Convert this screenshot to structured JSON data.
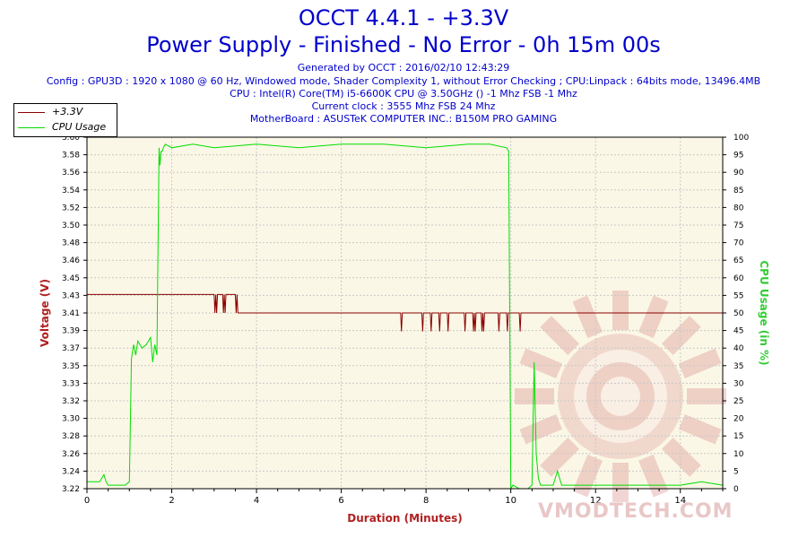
{
  "header": {
    "title": "OCCT 4.4.1 - +3.3V",
    "subtitle": "Power Supply - Finished - No Error - 0h 15m 00s",
    "info_lines": [
      "Generated by OCCT : 2016/02/10 12:43:29",
      "Config : GPU3D : 1920 x 1080 @ 60 Hz, Windowed mode, Shader Complexity 1, without Error Checking ; CPU:Linpack : 64bits mode, 13496.4MB",
      "CPU : Intel(R) Core(TM) i5-6600K CPU @ 3.50GHz () -1 Mhz FSB -1 Mhz",
      "Current clock : 3555 Mhz FSB 24 Mhz",
      "MotherBoard : ASUSTeK COMPUTER INC.: B150M PRO GAMING"
    ]
  },
  "watermark": "VMODTECH.COM",
  "colors": {
    "voltage": "#8b0000",
    "cpu": "#00dd00",
    "plot_bg": "#fbf7e6",
    "grid": "#c8c8c8",
    "axis_title_x": "#b02020",
    "axis_title_left": "#b02020",
    "axis_title_right": "#33cc33"
  },
  "chart_data": {
    "type": "line",
    "xlabel": "Duration (Minutes)",
    "ylabel_left": "Voltage (V)",
    "ylabel_right": "CPU Usage (in %)",
    "xlim": [
      0,
      15
    ],
    "ylim_left": [
      3.22,
      3.6
    ],
    "ylim_right": [
      0,
      100
    ],
    "x_ticks": [
      0,
      2,
      4,
      6,
      8,
      10,
      12,
      14
    ],
    "y_left_ticks": [
      "3.22",
      "3.24",
      "3.26",
      "3.28",
      "3.30",
      "3.32",
      "3.33",
      "3.35",
      "3.37",
      "3.39",
      "3.41",
      "3.43",
      "3.45",
      "3.46",
      "3.48",
      "3.50",
      "3.52",
      "3.54",
      "3.56",
      "3.58",
      "3.60"
    ],
    "y_right_ticks": [
      0,
      5,
      10,
      15,
      20,
      25,
      30,
      35,
      40,
      45,
      50,
      55,
      60,
      65,
      70,
      75,
      80,
      85,
      90,
      95,
      100
    ],
    "grid": true,
    "legend": "top-left",
    "series": [
      {
        "name": "+3.3V",
        "axis": "left",
        "x": [
          0,
          3.0,
          3.02,
          3.04,
          3.06,
          3.08,
          3.1,
          3.2,
          3.22,
          3.24,
          3.26,
          3.28,
          3.3,
          3.5,
          3.52,
          3.54,
          3.56,
          7.4,
          7.42,
          7.44,
          7.9,
          7.92,
          7.94,
          8.1,
          8.12,
          8.14,
          8.3,
          8.32,
          8.34,
          8.5,
          8.52,
          8.54,
          8.9,
          8.92,
          8.94,
          9.1,
          9.12,
          9.14,
          9.16,
          9.18,
          9.3,
          9.32,
          9.34,
          9.36,
          9.38,
          9.7,
          9.72,
          9.74,
          9.9,
          9.92,
          9.94,
          10.2,
          10.22,
          10.24,
          15
        ],
        "values": [
          3.43,
          3.43,
          3.41,
          3.43,
          3.41,
          3.43,
          3.43,
          3.43,
          3.41,
          3.43,
          3.41,
          3.43,
          3.43,
          3.43,
          3.41,
          3.43,
          3.41,
          3.41,
          3.39,
          3.41,
          3.41,
          3.39,
          3.41,
          3.41,
          3.39,
          3.41,
          3.41,
          3.39,
          3.41,
          3.41,
          3.39,
          3.41,
          3.41,
          3.39,
          3.41,
          3.41,
          3.39,
          3.41,
          3.39,
          3.41,
          3.41,
          3.39,
          3.41,
          3.39,
          3.41,
          3.41,
          3.39,
          3.41,
          3.41,
          3.39,
          3.41,
          3.41,
          3.39,
          3.41,
          3.41
        ]
      },
      {
        "name": "CPU Usage",
        "axis": "right",
        "x": [
          0,
          0.3,
          0.4,
          0.45,
          0.5,
          0.9,
          1.0,
          1.05,
          1.1,
          1.15,
          1.2,
          1.3,
          1.4,
          1.5,
          1.55,
          1.6,
          1.65,
          1.7,
          1.72,
          1.75,
          1.78,
          1.8,
          1.85,
          2.0,
          2.5,
          3.0,
          4.0,
          5.0,
          6.0,
          7.0,
          8.0,
          9.0,
          9.5,
          9.9,
          9.95,
          10.0,
          10.05,
          10.2,
          10.4,
          10.5,
          10.55,
          10.6,
          10.65,
          10.7,
          10.8,
          11.0,
          11.1,
          11.2,
          12.0,
          13.0,
          14.0,
          14.5,
          15.0
        ],
        "values": [
          2,
          2,
          4,
          2,
          1,
          1,
          2,
          37,
          41,
          38,
          42,
          40,
          41,
          43,
          36,
          41,
          38,
          97,
          92,
          96,
          96,
          97,
          98,
          97,
          98,
          97,
          98,
          97,
          98,
          98,
          97,
          98,
          98,
          97,
          96,
          0,
          1,
          0,
          0,
          1,
          36,
          10,
          3,
          1,
          1,
          1,
          5,
          1,
          1,
          1,
          1,
          2,
          1
        ]
      }
    ]
  }
}
